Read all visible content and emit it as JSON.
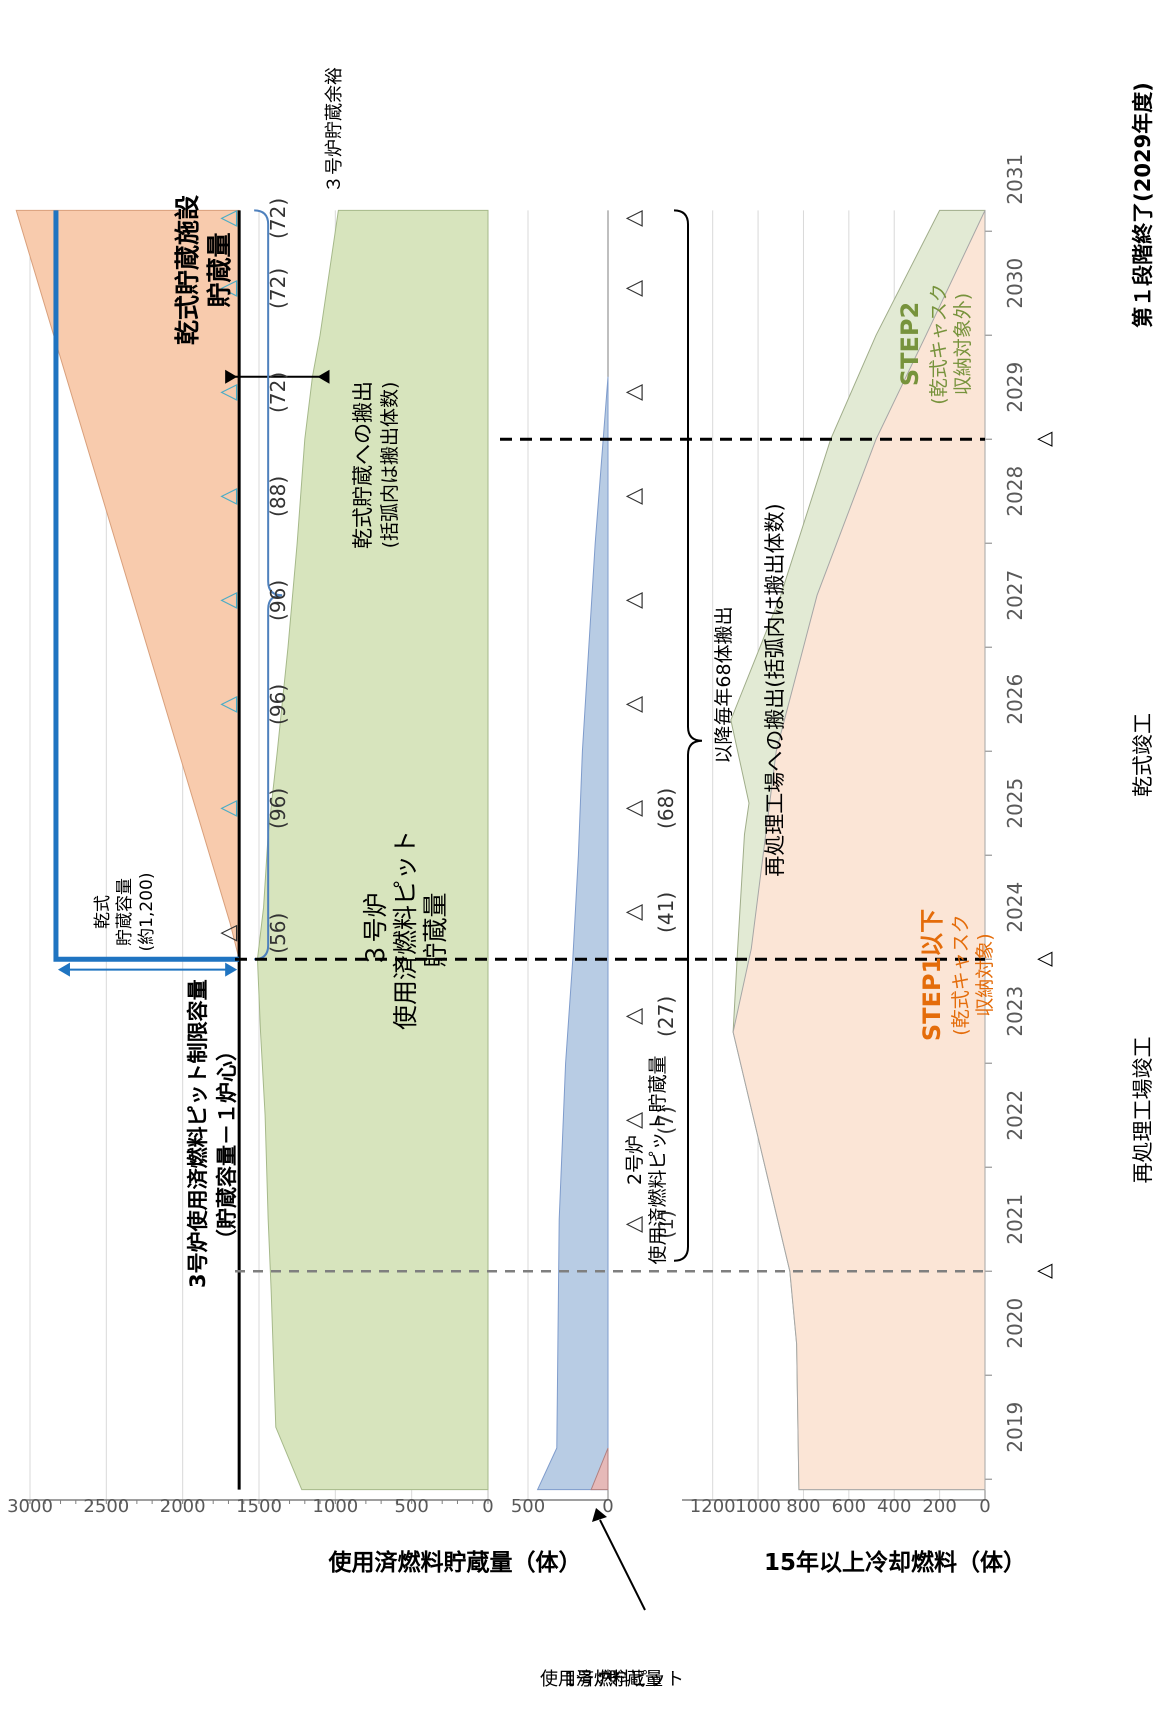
{
  "colors": {
    "unit3_pit": "#d7e4bd",
    "dry_storage": "#f8cbad",
    "unit2_pit": "#b8cce4",
    "unit1_pit": "#e6b9b8",
    "step1": "#fbe5d6",
    "step2": "#e2ead4",
    "limit_line": "#000000",
    "dry_capacity_line": "#1f74c1",
    "triangle_dry": "#4bacc6",
    "step1_text": "#e46c0a",
    "step2_text": "#77933c"
  },
  "chart_data": [
    {
      "type": "area",
      "title": "",
      "ylabel": "使用済燃料貯蔵量（体）",
      "ylim": [
        0,
        3000
      ],
      "yticks": [
        0,
        500,
        1000,
        1500,
        2000,
        2500,
        3000
      ],
      "x_years": [
        "2019",
        "2020",
        "2021",
        "2022",
        "2023",
        "2024",
        "2025",
        "2026",
        "2027",
        "2028",
        "2029",
        "2030",
        "2031"
      ],
      "series": [
        {
          "name": "3号炉使用済燃料ピット貯蔵量",
          "x": [
            2018.9,
            2019.5,
            2020.8,
            2021.5,
            2022.5,
            2023.3,
            2024.0,
            2024.5,
            2025.2,
            2026.0,
            2027.0,
            2028.0,
            2029.0,
            2029.6,
            2030.0,
            2031.2
          ],
          "values": [
            1220,
            1390,
            1420,
            1440,
            1460,
            1490,
            1510,
            1470,
            1440,
            1380,
            1310,
            1250,
            1200,
            1150,
            1100,
            980
          ]
        },
        {
          "name": "乾式貯蔵施設貯蔵量",
          "x": [
            2024.0,
            2024.35,
            2031.2
          ],
          "values": [
            0,
            60,
            1460
          ]
        }
      ],
      "limit_line": {
        "name": "3号炉使用済燃料ピット制限容量",
        "value": 1630
      },
      "dry_capacity": {
        "value": 1200
      }
    },
    {
      "type": "area",
      "ylabel_lines": [
        "1号炉",
        "使用済燃料ピット",
        "貯蔵量"
      ],
      "ylim": [
        0,
        500
      ],
      "yticks": [
        0,
        500
      ],
      "series": [
        {
          "name": "2号炉使用済燃料ピット貯蔵量",
          "x": [
            2018.9,
            2019.3,
            2021.5,
            2023.0,
            2024.0,
            2025.0,
            2026.0,
            2027.0,
            2028.0,
            2029.0,
            2029.6
          ],
          "values": [
            440,
            320,
            305,
            265,
            220,
            185,
            160,
            120,
            80,
            30,
            0
          ]
        },
        {
          "name": "1号炉使用済燃料ピット貯蔵量",
          "x": [
            2018.9,
            2019.3
          ],
          "values": [
            105,
            0
          ]
        }
      ]
    },
    {
      "type": "area",
      "ylabel": "15年以上冷却燃料（体）",
      "ylim": [
        0,
        1300
      ],
      "yticks": [
        0,
        200,
        400,
        600,
        800,
        1000,
        1200
      ],
      "series": [
        {
          "name": "STEP1以下",
          "x": [
            2018.9,
            2020.3,
            2021.0,
            2023.3,
            2024.1,
            2026.0,
            2027.5,
            2029.0,
            2030.0,
            2031.2
          ],
          "values": [
            820,
            830,
            860,
            1110,
            1030,
            920,
            740,
            480,
            260,
            0
          ]
        },
        {
          "name": "STEP2",
          "x": [
            2018.9,
            2020.3,
            2021.0,
            2023.3,
            2024.1,
            2025.2,
            2025.5,
            2026.3,
            2027.5,
            2029.0,
            2030.0,
            2031.2
          ],
          "values": [
            820,
            830,
            860,
            1110,
            1090,
            1060,
            1040,
            1120,
            900,
            680,
            480,
            200
          ]
        }
      ]
    }
  ],
  "top_labels": {
    "limit_line": [
      "3号炉使用済燃料ピット制限容量",
      "（貯蔵容量－１炉心）"
    ],
    "dry_capacity": [
      "乾式",
      "貯蔵容量",
      "(約1,200)"
    ],
    "dry_storage": [
      "乾式貯蔵施設",
      "貯蔵量"
    ],
    "unit3": [
      "３号炉",
      "使用済燃料ピット",
      "貯蔵量"
    ],
    "shipment": [
      "乾式貯蔵への搬出",
      "(括弧内は搬出体数)"
    ],
    "margin": "３号炉貯蔵余裕"
  },
  "dry_shipments": [
    "(56)",
    "(96)",
    "(96)",
    "(96)",
    "(88)",
    "(72)",
    "(72)",
    "(72)"
  ],
  "unit2_label": [
    "2号炉",
    "使用済燃料ピット貯蔵量"
  ],
  "reproc_shipments": [
    "(1)",
    "(7)",
    "(27)",
    "(41)",
    "(68)"
  ],
  "reproc_text": "以降毎年68体搬出",
  "reproc_label": "再処理工場への搬出(括弧内は搬出体数)",
  "step1_label": [
    "STEP1以下",
    "(乾式キャスク",
    "収納対象)"
  ],
  "step2_label": [
    "STEP2",
    "(乾式キャスク",
    "収納対象外)"
  ],
  "milestones": {
    "reprocessing_plant": "再処理工場竣工",
    "dry_complete": "乾式竣工",
    "phase1_end": "第１段階終了(2029年度)"
  },
  "triangle_glyph": "△"
}
